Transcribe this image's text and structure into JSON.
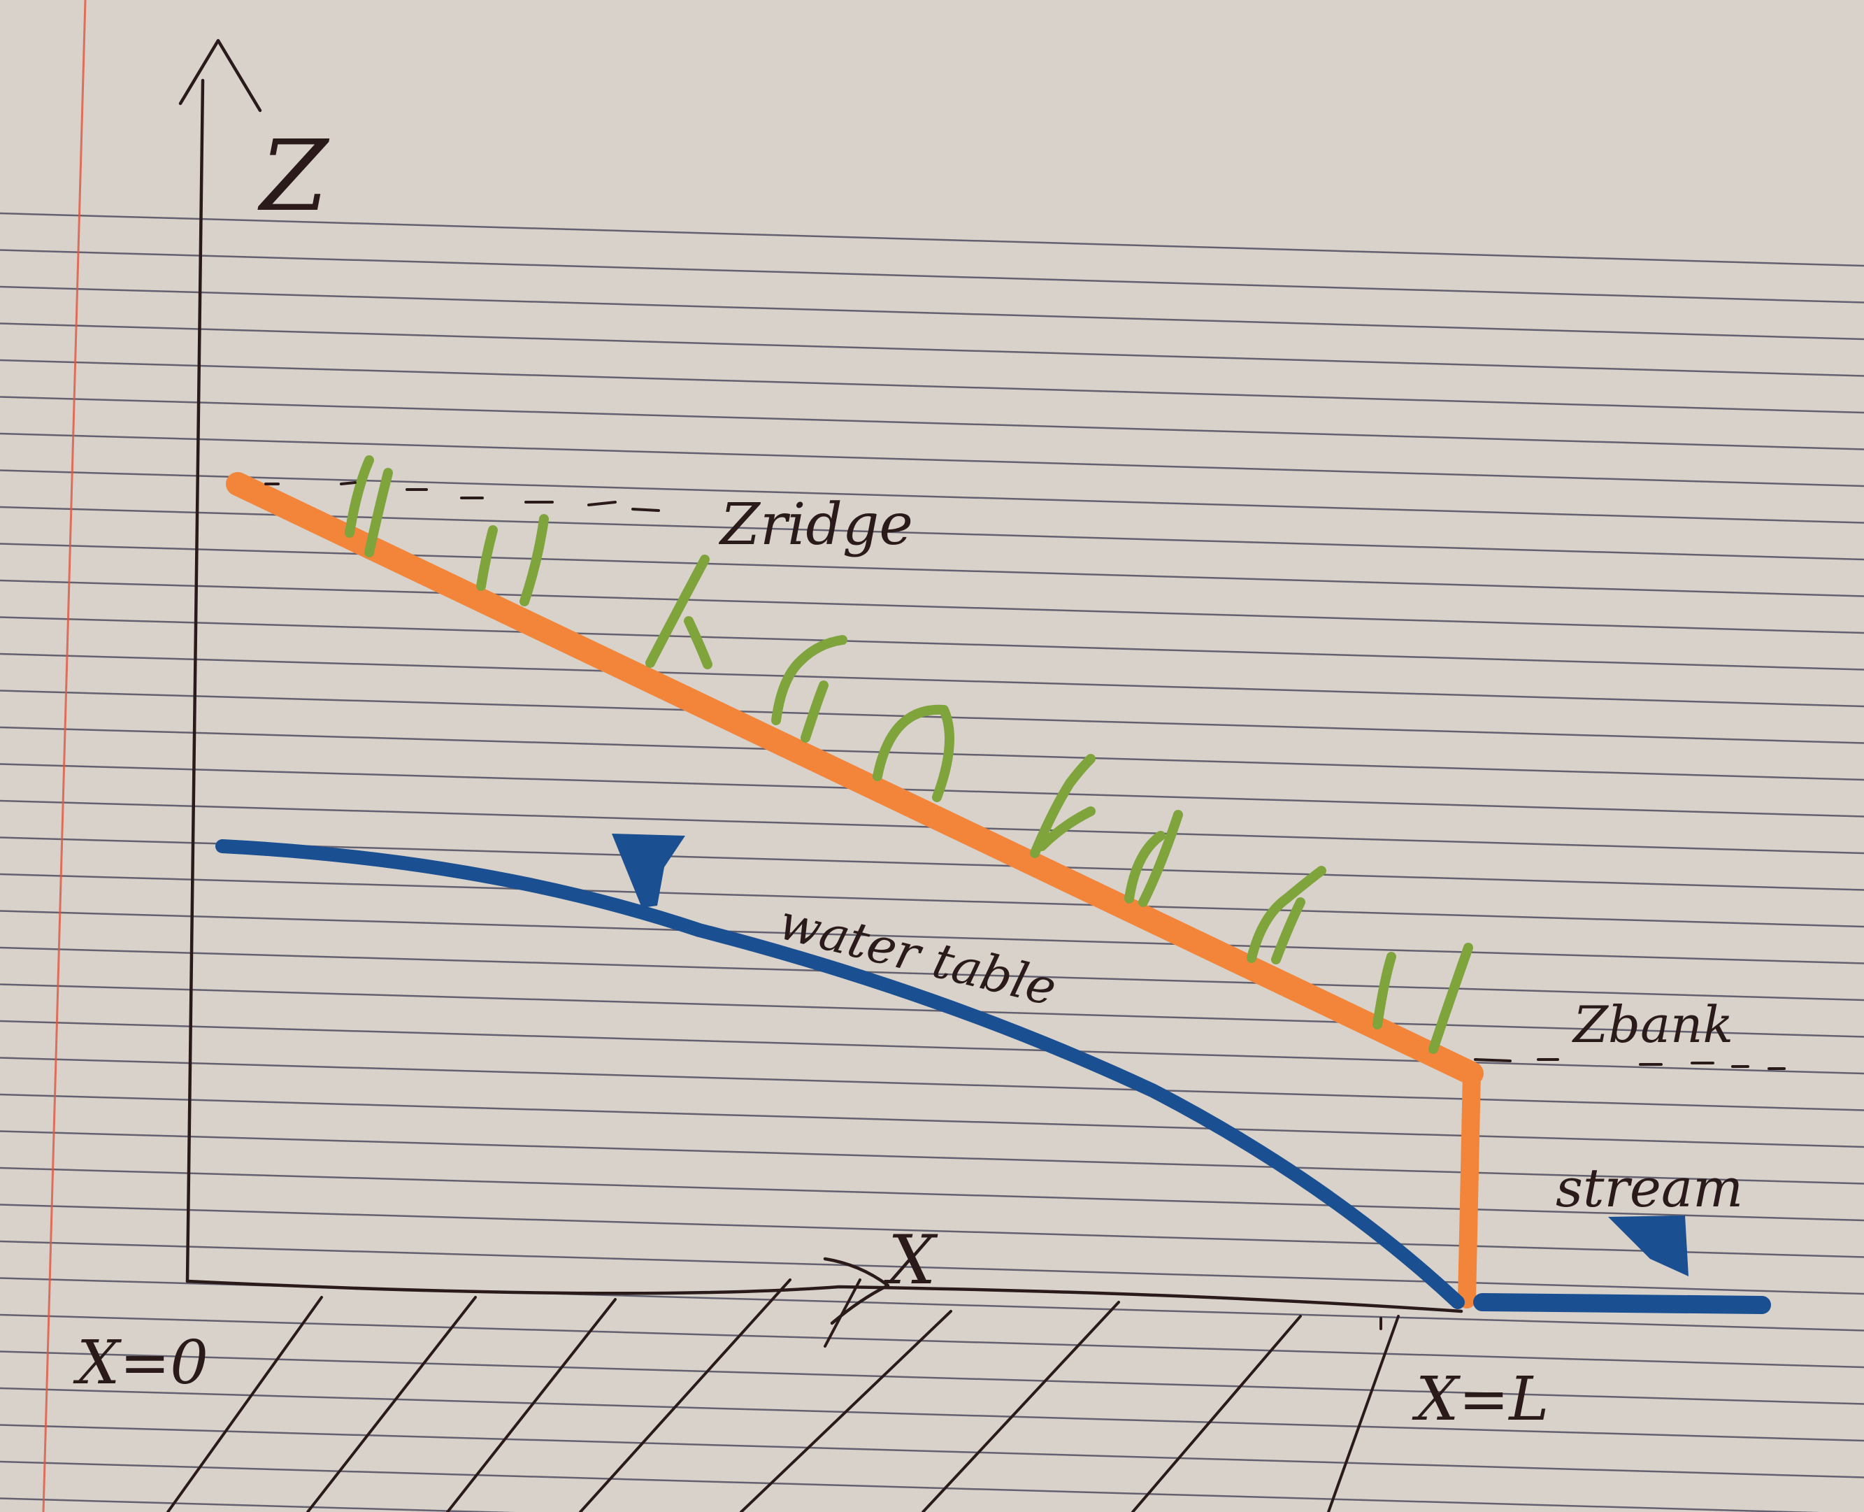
{
  "labels": {
    "z_axis": "Z",
    "x_axis": "X",
    "z_ridge": "Zridge",
    "z_bank": "Zbank",
    "water_table": "water table",
    "stream": "stream",
    "x_zero": "X=0",
    "x_L": "X=L"
  },
  "colors": {
    "paper": "#d8d2cb",
    "ruling": "#3d3c52",
    "margin": "#e0563e",
    "ink": "#2a1a1a",
    "surface": "#f2853a",
    "water": "#1a4f92",
    "grass": "#7fa43c"
  },
  "icons": {
    "water_marker": "inverted-triangle-icon",
    "stream_marker": "inverted-triangle-icon"
  }
}
